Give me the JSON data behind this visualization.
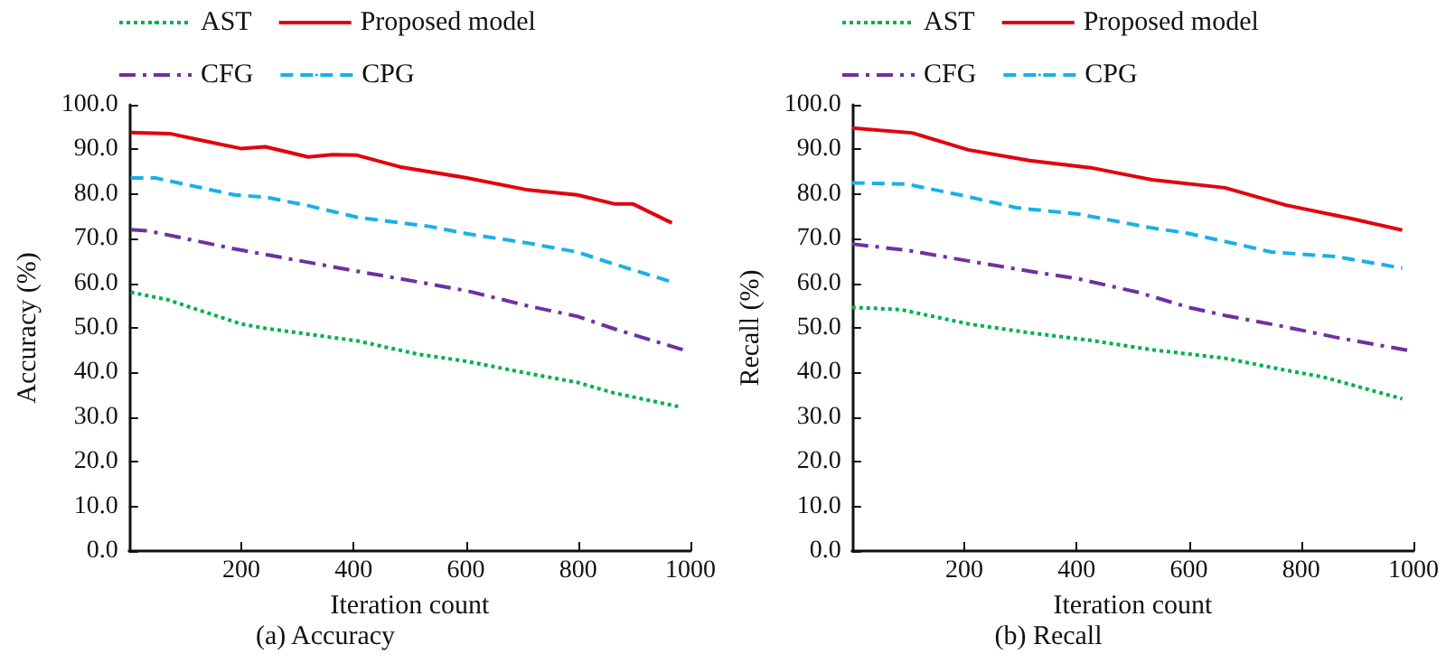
{
  "chart_data": [
    {
      "type": "line",
      "title": "(a) Accuracy",
      "xlabel": "Iteration count",
      "ylabel": "Accuracy (%)",
      "xlim": [
        0,
        1000
      ],
      "xticks": [
        200,
        400,
        600,
        800,
        1000
      ],
      "ylim": [
        0,
        100
      ],
      "yticks": [
        {
          "value": 0,
          "label": "0.0"
        },
        {
          "value": 10,
          "label": "10.0"
        },
        {
          "value": 20,
          "label": "20.0"
        },
        {
          "value": 30,
          "label": "30.0"
        },
        {
          "value": 40,
          "label": "40.0"
        },
        {
          "value": 50,
          "label": "50.0"
        },
        {
          "value": 60,
          "label": "60.0"
        },
        {
          "value": 70,
          "label": "70.0"
        },
        {
          "value": 80,
          "label": "80.0"
        },
        {
          "value": 90,
          "label": "90.0"
        },
        {
          "value": 100,
          "label": "100.0"
        }
      ],
      "grid": false,
      "legend": "top",
      "marker": "none",
      "series": [
        {
          "name": "AST",
          "color": "#00b050",
          "line_style": "dotted",
          "x": [
            3,
            69,
            134,
            199,
            243,
            319,
            406,
            515,
            602,
            711,
            798,
            864,
            978
          ],
          "values": [
            58.0,
            56.3,
            53.6,
            50.9,
            49.9,
            48.6,
            47.1,
            44.1,
            42.5,
            39.8,
            37.8,
            35.4,
            32.4
          ]
        },
        {
          "name": "Proposed model",
          "color": "#e3000f",
          "line_style": "solid",
          "x": [
            3,
            74,
            134,
            199,
            243,
            319,
            362,
            406,
            482,
            602,
            711,
            798,
            864,
            897,
            967
          ],
          "values": [
            93.8,
            93.5,
            91.9,
            90.2,
            90.6,
            88.3,
            88.8,
            88.7,
            86.1,
            83.6,
            80.9,
            79.8,
            77.8,
            77.8,
            73.5
          ]
        },
        {
          "name": "CFG",
          "color": "#7030a0",
          "line_style": "dashdot",
          "x": [
            3,
            36,
            188,
            319,
            406,
            515,
            602,
            711,
            798,
            864,
            994
          ],
          "values": [
            72.0,
            71.7,
            67.7,
            64.7,
            62.7,
            60.3,
            58.3,
            54.9,
            52.6,
            49.8,
            44.8
          ]
        },
        {
          "name": "CPG",
          "color": "#1ab0e8",
          "line_style": "dashed",
          "x": [
            3,
            47,
            188,
            243,
            319,
            406,
            537,
            602,
            711,
            798,
            864,
            967
          ],
          "values": [
            83.6,
            83.6,
            79.8,
            79.3,
            77.4,
            74.8,
            72.7,
            71.1,
            69.0,
            67.0,
            64.3,
            60.3
          ]
        }
      ]
    },
    {
      "type": "line",
      "title": "(b) Recall",
      "xlabel": "Iteration count",
      "ylabel": "Recall (%)",
      "xlim": [
        0,
        1000
      ],
      "xticks": [
        200,
        400,
        600,
        800,
        1000
      ],
      "ylim": [
        0,
        100
      ],
      "yticks": [
        {
          "value": 0,
          "label": "0.0"
        },
        {
          "value": 10,
          "label": "10.0"
        },
        {
          "value": 20,
          "label": "20.0"
        },
        {
          "value": 30,
          "label": "30.0"
        },
        {
          "value": 40,
          "label": "40.0"
        },
        {
          "value": 50,
          "label": "50.0"
        },
        {
          "value": 60,
          "label": "60.0"
        },
        {
          "value": 70,
          "label": "70.0"
        },
        {
          "value": 80,
          "label": "80.0"
        },
        {
          "value": 90,
          "label": "90.0"
        },
        {
          "value": 100,
          "label": "100.0"
        }
      ],
      "grid": false,
      "legend": "top",
      "marker": "none",
      "series": [
        {
          "name": "AST",
          "color": "#00b050",
          "line_style": "dotted",
          "x": [
            0,
            87,
            207,
            316,
            425,
            534,
            664,
            773,
            839,
            980
          ],
          "values": [
            54.6,
            54.1,
            50.9,
            48.9,
            47.2,
            45.1,
            43.2,
            40.5,
            39.0,
            34.1
          ]
        },
        {
          "name": "Proposed model",
          "color": "#e3000f",
          "line_style": "solid",
          "x": [
            0,
            107,
            207,
            316,
            425,
            534,
            664,
            773,
            893,
            980
          ],
          "values": [
            94.8,
            93.7,
            89.9,
            87.5,
            85.9,
            83.2,
            81.4,
            77.5,
            74.4,
            71.9
          ]
        },
        {
          "name": "CFG",
          "color": "#7030a0",
          "line_style": "dashdot",
          "x": [
            0,
            98,
            207,
            316,
            403,
            512,
            599,
            664,
            773,
            861,
            997
          ],
          "values": [
            68.8,
            67.4,
            65.0,
            62.7,
            61.0,
            57.9,
            54.6,
            52.8,
            50.2,
            47.9,
            44.8
          ]
        },
        {
          "name": "CPG",
          "color": "#1ab0e8",
          "line_style": "dashed",
          "x": [
            0,
            98,
            207,
            294,
            403,
            534,
            594,
            681,
            747,
            861,
            980
          ],
          "values": [
            82.5,
            82.2,
            79.4,
            76.9,
            75.5,
            72.4,
            71.3,
            68.9,
            67.0,
            66.0,
            63.4
          ]
        }
      ]
    }
  ]
}
